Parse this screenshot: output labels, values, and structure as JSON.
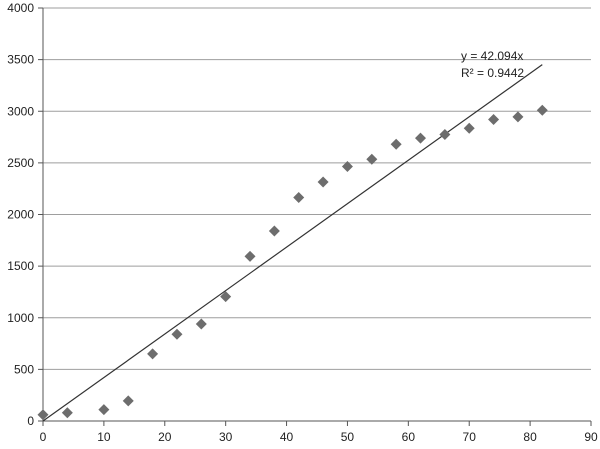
{
  "chart_data": {
    "type": "scatter",
    "title": "",
    "xlabel": "",
    "ylabel": "",
    "xlim": [
      0,
      90
    ],
    "ylim": [
      0,
      4000
    ],
    "x_ticks": [
      0,
      10,
      20,
      30,
      40,
      50,
      60,
      70,
      80,
      90
    ],
    "y_ticks": [
      0,
      500,
      1000,
      1500,
      2000,
      2500,
      3000,
      3500,
      4000
    ],
    "grid": "horizontal",
    "legend": "none",
    "series": [
      {
        "marker": "diamond",
        "color": "#6d6d6d",
        "points": [
          {
            "x": 0,
            "y": 60
          },
          {
            "x": 4,
            "y": 80
          },
          {
            "x": 10,
            "y": 110
          },
          {
            "x": 14,
            "y": 195
          },
          {
            "x": 18,
            "y": 650
          },
          {
            "x": 22,
            "y": 840
          },
          {
            "x": 26,
            "y": 940
          },
          {
            "x": 30,
            "y": 1205
          },
          {
            "x": 34,
            "y": 1595
          },
          {
            "x": 38,
            "y": 1840
          },
          {
            "x": 42,
            "y": 2165
          },
          {
            "x": 46,
            "y": 2315
          },
          {
            "x": 50,
            "y": 2465
          },
          {
            "x": 54,
            "y": 2535
          },
          {
            "x": 58,
            "y": 2680
          },
          {
            "x": 62,
            "y": 2740
          },
          {
            "x": 66,
            "y": 2775
          },
          {
            "x": 70,
            "y": 2835
          },
          {
            "x": 74,
            "y": 2920
          },
          {
            "x": 78,
            "y": 2945
          },
          {
            "x": 82,
            "y": 3010
          }
        ]
      }
    ],
    "trendline": {
      "type": "linear-through-origin",
      "slope": 42.094,
      "x_range": [
        0,
        82
      ],
      "color": "#333333",
      "equation_label": "y = 42.094x",
      "r2_label": "R² = 0.9442"
    },
    "colors": {
      "gridline": "#9e9e9e",
      "axis": "#555555"
    }
  }
}
